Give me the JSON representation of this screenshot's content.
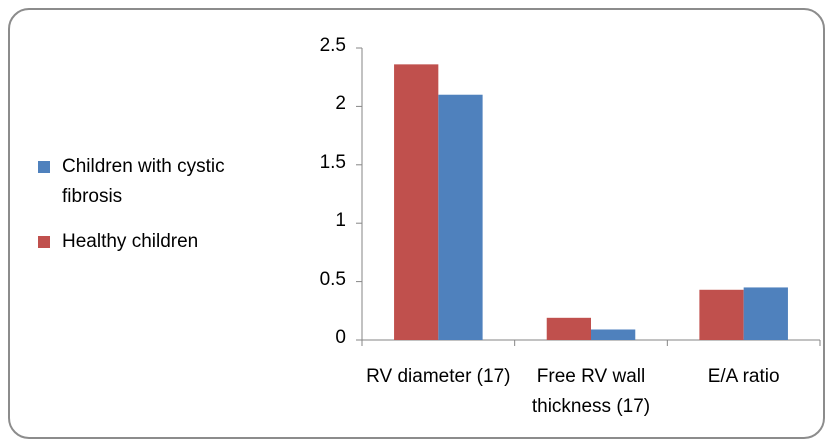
{
  "chart_data": {
    "type": "bar",
    "categories": [
      "RV diameter (17)",
      "Free RV wall thickness (17)",
      "E/A ratio"
    ],
    "series": [
      {
        "name": "Healthy children",
        "color": "#c0504d",
        "values": [
          2.36,
          0.19,
          0.43
        ]
      },
      {
        "name": "Children with cystic fibrosis",
        "color": "#4f81bd",
        "values": [
          2.1,
          0.09,
          0.45
        ]
      }
    ],
    "ylim": [
      0,
      2.5
    ],
    "yticks": [
      0,
      0.5,
      1,
      1.5,
      2,
      2.5
    ],
    "grid": false,
    "legend": "left"
  }
}
